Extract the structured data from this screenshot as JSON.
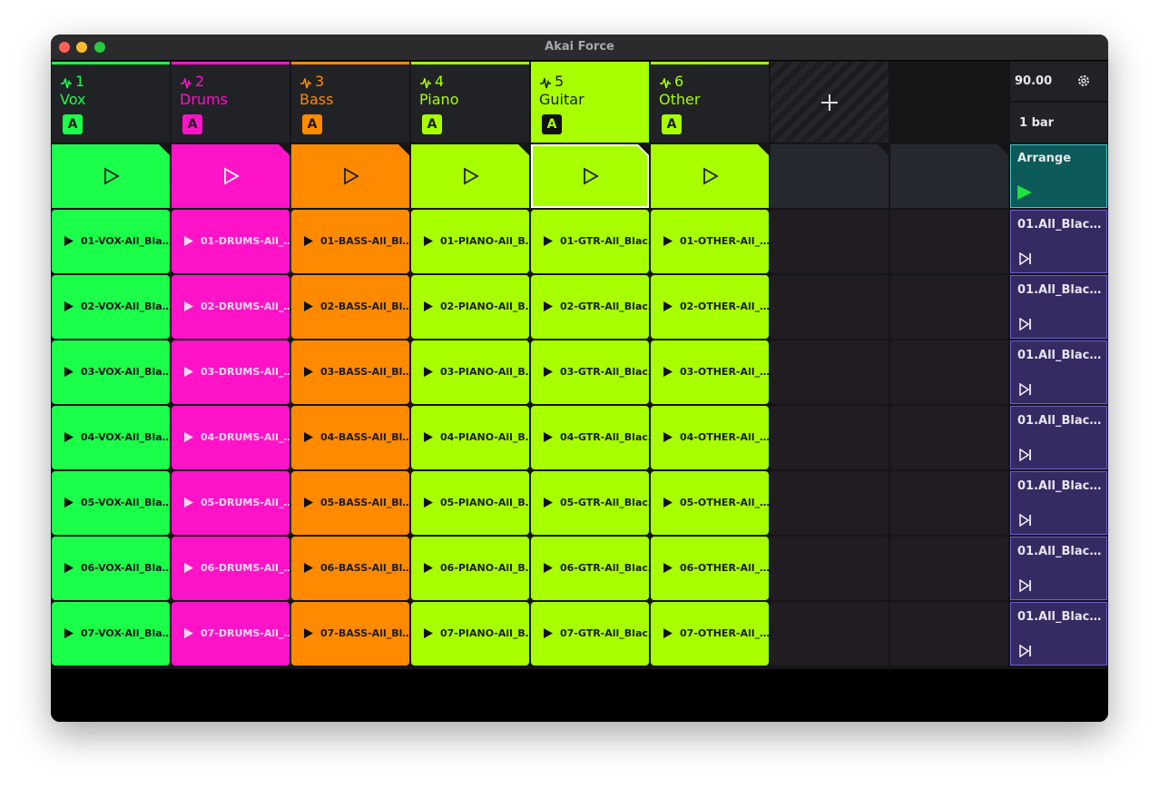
{
  "window": {
    "title": "Akai Force"
  },
  "tracks": [
    {
      "number": "1",
      "name": "Vox",
      "color": "#1bff4b",
      "badge": "A",
      "clips": [
        "01-VOX-All_Bla…",
        "02-VOX-All_Bla…",
        "03-VOX-All_Bla…",
        "04-VOX-All_Bla…",
        "05-VOX-All_Bla…",
        "06-VOX-All_Bla…",
        "07-VOX-All_Bla…"
      ]
    },
    {
      "number": "2",
      "name": "Drums",
      "color": "#ff13c9",
      "badge": "A",
      "clips": [
        "01-DRUMS-All_…",
        "02-DRUMS-All_…",
        "03-DRUMS-All_…",
        "04-DRUMS-All_…",
        "05-DRUMS-All_…",
        "06-DRUMS-All_…",
        "07-DRUMS-All_…"
      ]
    },
    {
      "number": "3",
      "name": "Bass",
      "color": "#ff8a00",
      "badge": "A",
      "clips": [
        "01-BASS-All_Bl…",
        "02-BASS-All_Bl…",
        "03-BASS-All_Bl…",
        "04-BASS-All_Bl…",
        "05-BASS-All_Bl…",
        "06-BASS-All_Bl…",
        "07-BASS-All_Bl…"
      ]
    },
    {
      "number": "4",
      "name": "Piano",
      "color": "#a8ff00",
      "badge": "A",
      "clips": [
        "01-PIANO-All_B…",
        "02-PIANO-All_B…",
        "03-PIANO-All_B…",
        "04-PIANO-All_B…",
        "05-PIANO-All_B…",
        "06-PIANO-All_B…",
        "07-PIANO-All_B…"
      ]
    },
    {
      "number": "5",
      "name": "Guitar",
      "color": "#a8ff00",
      "badge": "A",
      "clips": [
        "01-GTR-All_Blac…",
        "02-GTR-All_Blac…",
        "03-GTR-All_Blac…",
        "04-GTR-All_Blac…",
        "05-GTR-All_Blac…",
        "06-GTR-All_Blac…",
        "07-GTR-All_Blac…"
      ]
    },
    {
      "number": "6",
      "name": "Other",
      "color": "#a8ff00",
      "badge": "A",
      "clips": [
        "01-OTHER-All_…",
        "02-OTHER-All_…",
        "03-OTHER-All_…",
        "04-OTHER-All_…",
        "05-OTHER-All_…",
        "06-OTHER-All_…",
        "07-OTHER-All_…"
      ]
    }
  ],
  "selected_track": 4,
  "side": {
    "tempo": "90.00",
    "length": "1 bar",
    "arrange": "Arrange",
    "scenes": [
      "01.All_Blac…",
      "01.All_Blac…",
      "01.All_Blac…",
      "01.All_Blac…",
      "01.All_Blac…",
      "01.All_Blac…",
      "01.All_Blac…"
    ]
  }
}
